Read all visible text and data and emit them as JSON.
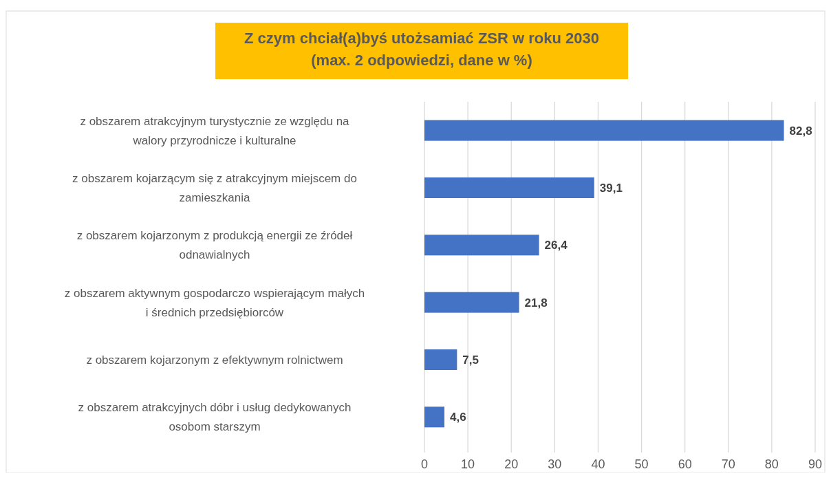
{
  "chart_data": {
    "type": "bar",
    "orientation": "horizontal",
    "title": "Z czym chciał(a)byś utożsamiać ZSR w roku 2030\n(max. 2 odpowiedzi, dane w %)",
    "categories": [
      "z obszarem atrakcyjnym turystycznie ze względu na walory przyrodnicze i kulturalne",
      "z obszarem kojarzącym się z atrakcyjnym miejscem do zamieszkania",
      "z obszarem kojarzonym z produkcją energii ze źródeł odnawialnych",
      "z obszarem aktywnym gospodarczo wspierającym małych i średnich przedsiębiorców",
      "z obszarem kojarzonym z efektywnym rolnictwem",
      "z obszarem atrakcyjnych dóbr i usług dedykowanych osobom starszym"
    ],
    "values": [
      82.8,
      39.1,
      26.4,
      21.8,
      7.5,
      4.6
    ],
    "color": "#4472c4",
    "data_labels": true,
    "value_labels": [
      "82,8",
      "39,1",
      "26,4",
      "21,8",
      "7,5",
      "4,6"
    ],
    "xlim": [
      0,
      90
    ],
    "xticks": [
      0,
      10,
      20,
      30,
      40,
      50,
      60,
      70,
      80,
      90
    ],
    "grid": "x"
  }
}
